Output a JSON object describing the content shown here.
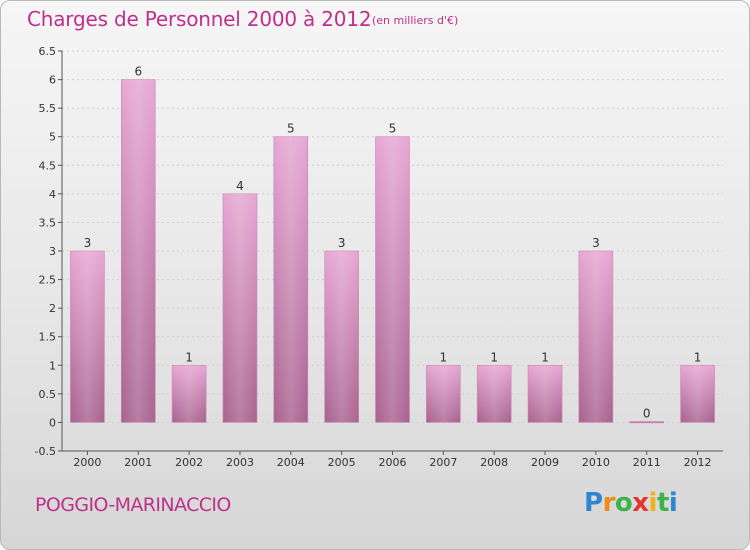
{
  "title": "Charges de Personnel 2000 à 2012",
  "subtitle": "(en milliers d'€)",
  "location": "POGGIO-MARINACCIO",
  "logo": {
    "text": "Proxiti",
    "letters": [
      "P",
      "r",
      "o",
      "x",
      "i",
      "t",
      "i"
    ]
  },
  "colors": {
    "title": "#c0308a",
    "bar_top": "#e6a6d2",
    "bar_bottom": "#a8628f",
    "axis": "#555555",
    "grid": "#d0d0d0"
  },
  "chart_data": {
    "type": "bar",
    "title": "Charges de Personnel 2000 à 2012",
    "subtitle": "(en milliers d'€)",
    "xlabel": "",
    "ylabel": "",
    "categories": [
      "2000",
      "2001",
      "2002",
      "2003",
      "2004",
      "2005",
      "2006",
      "2007",
      "2008",
      "2009",
      "2010",
      "2011",
      "2012"
    ],
    "values": [
      3,
      6,
      1,
      4,
      5,
      3,
      5,
      1,
      1,
      1,
      3,
      0,
      1
    ],
    "data_labels": [
      "3",
      "6",
      "1",
      "4",
      "5",
      "3",
      "5",
      "1",
      "1",
      "1",
      "3",
      "0",
      "1"
    ],
    "ylim": [
      -0.5,
      6.5
    ],
    "yticks": [
      -0.5,
      0,
      0.5,
      1,
      1.5,
      2,
      2.5,
      3,
      3.5,
      4,
      4.5,
      5,
      5.5,
      6,
      6.5
    ],
    "ytick_labels": [
      "-0.5",
      "0",
      "0.5",
      "1",
      "1.5",
      "2",
      "2.5",
      "3",
      "3.5",
      "4",
      "4.5",
      "5",
      "5.5",
      "6",
      "6.5"
    ],
    "grid": true,
    "legend": "none"
  }
}
